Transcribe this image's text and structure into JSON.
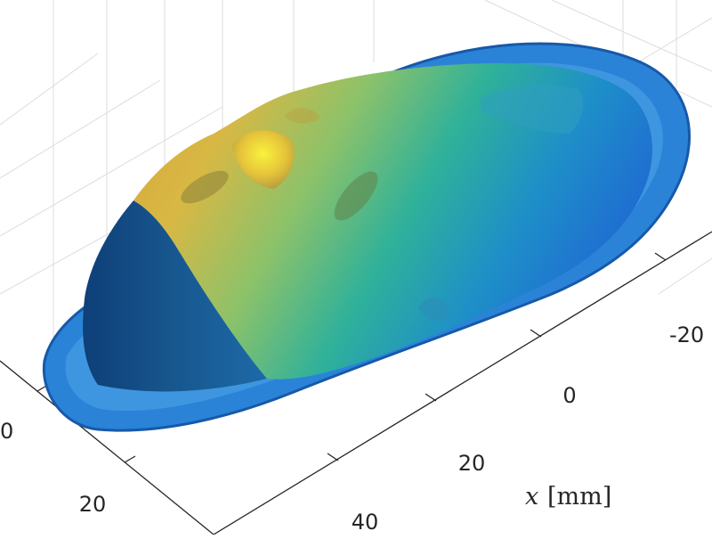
{
  "chart_data": {
    "type": "surface3d",
    "title": "",
    "xlabel": "x",
    "xlabel_unit": "[mm]",
    "x_ticks": [
      "-20",
      "0",
      "20",
      "40"
    ],
    "y_ticks": [
      "0",
      "20"
    ],
    "grid": true,
    "colormap": "parula",
    "colors": {
      "low": "#1f6fd1",
      "mid": "#22b39a",
      "high": "#f4d038",
      "peak": "#f9f23d",
      "grid": "#dcdcdc",
      "axis": "#262626"
    }
  }
}
